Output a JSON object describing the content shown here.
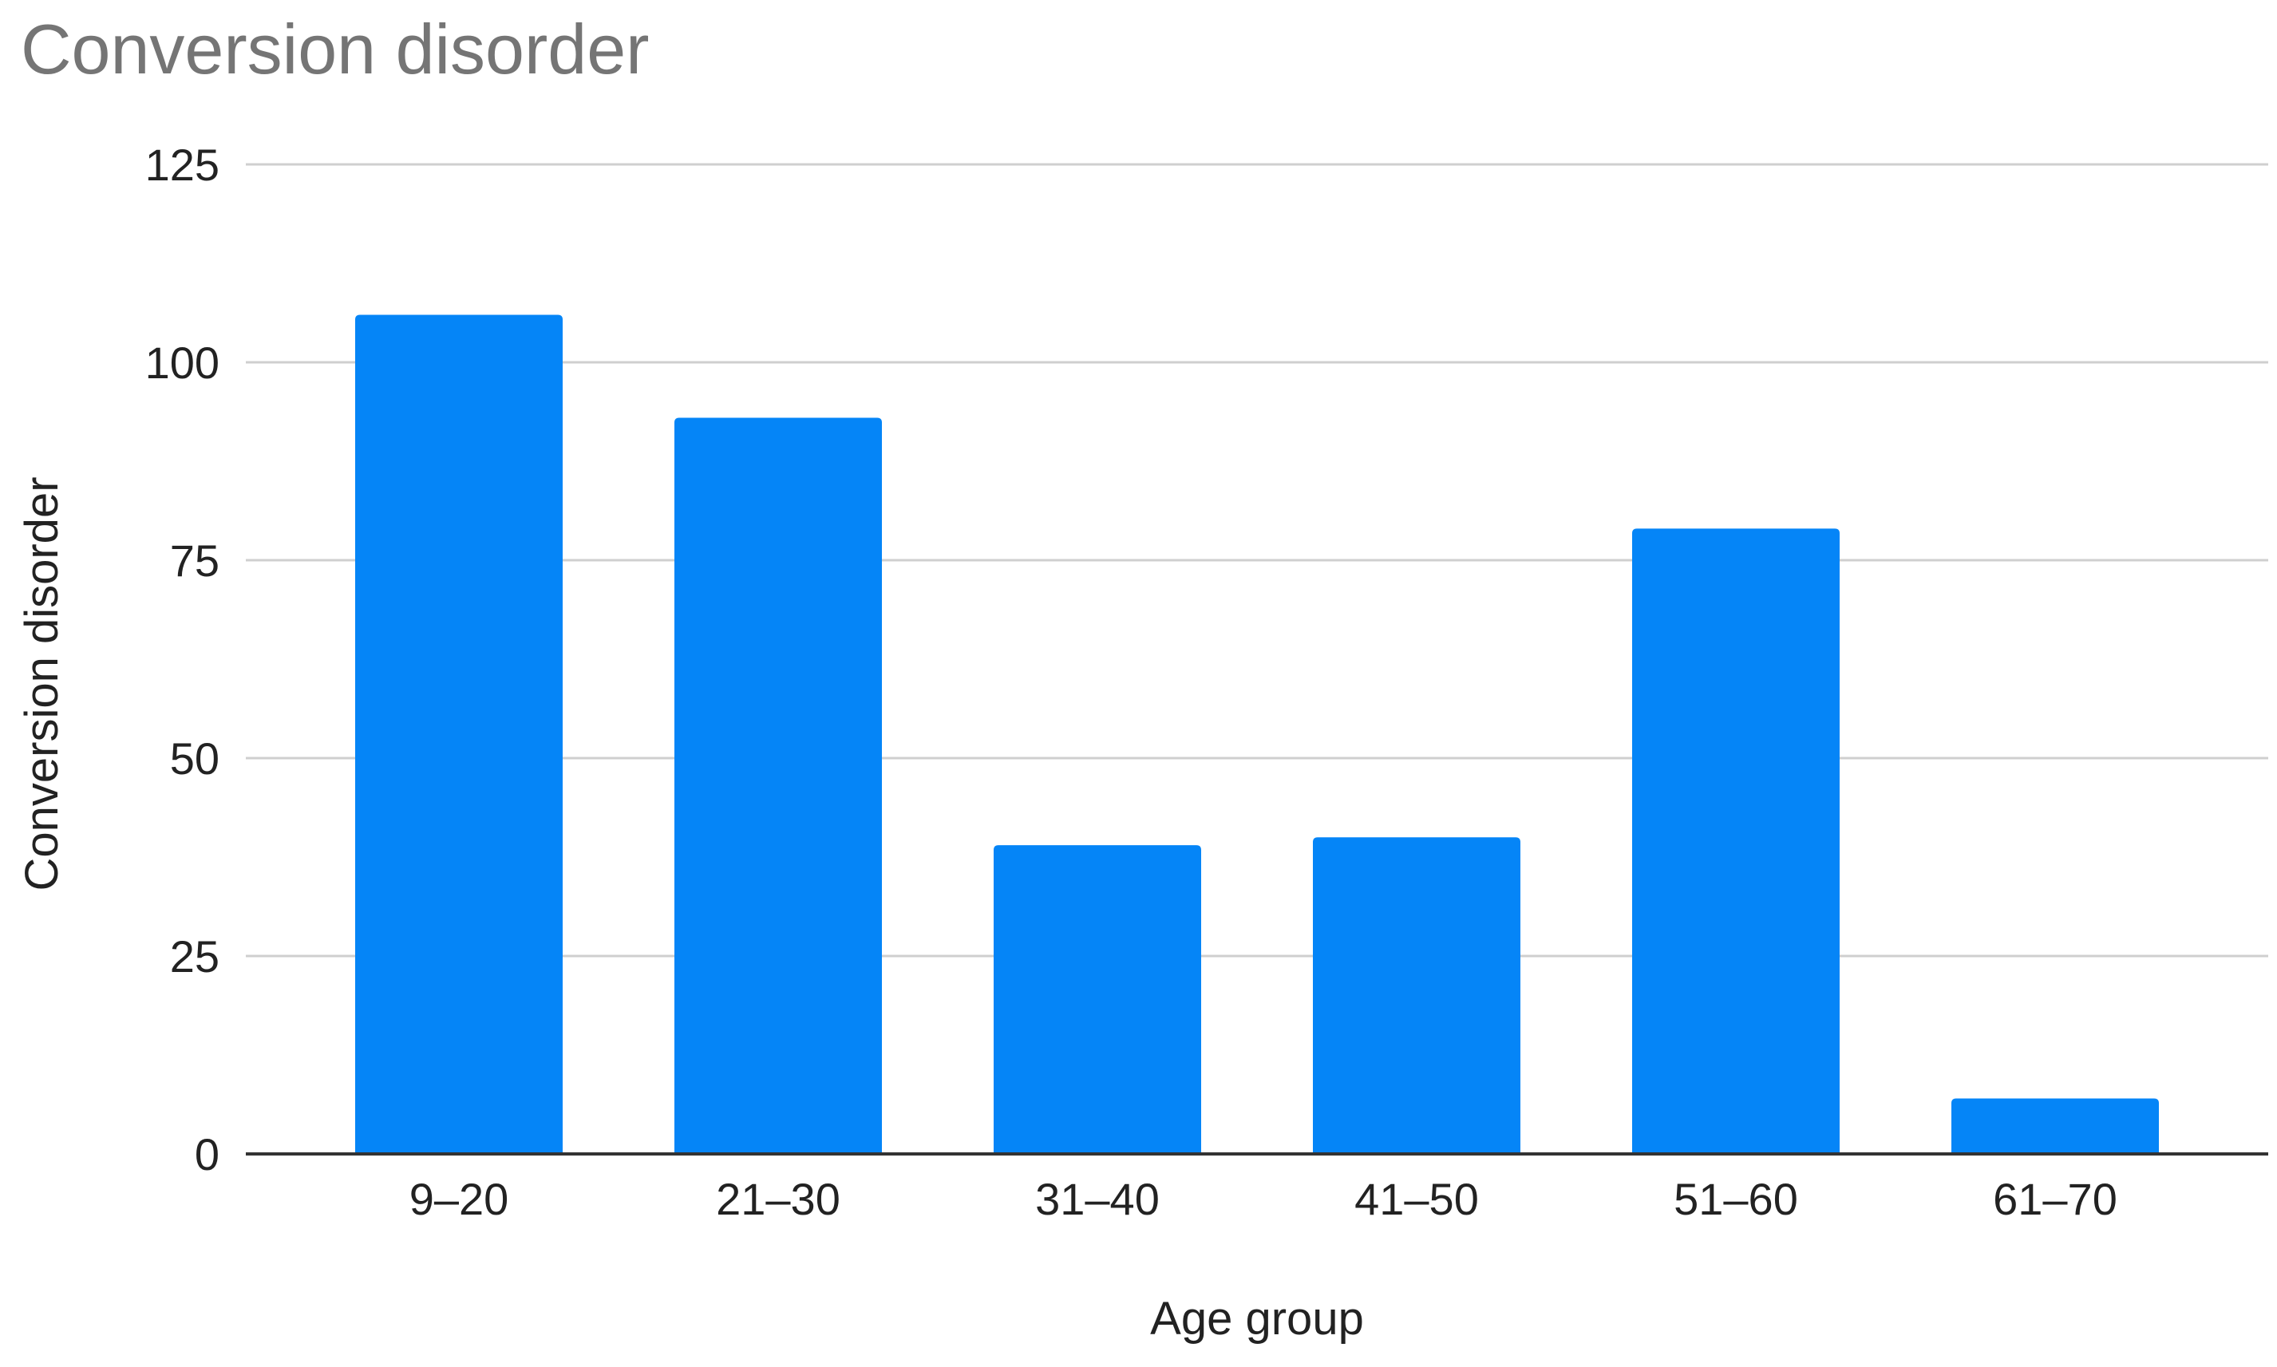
{
  "chart_data": {
    "type": "bar",
    "title": "Conversion disorder",
    "xlabel": "Age group",
    "ylabel": "Conversion disorder",
    "categories": [
      "9–20",
      "21–30",
      "31–40",
      "41–50",
      "51–60",
      "61–70"
    ],
    "series": [
      {
        "values": [
          106,
          93,
          39,
          40,
          79,
          7
        ]
      }
    ],
    "ylim": [
      0,
      125
    ],
    "yticks": [
      "0",
      "25",
      "50",
      "75",
      "100",
      "125"
    ],
    "grid": true,
    "legend": "none",
    "colors": {
      "bar": "#0585f7",
      "grid": "#cfcfcf",
      "baseline": "#333333",
      "title": "#757575",
      "text": "#222222"
    }
  }
}
